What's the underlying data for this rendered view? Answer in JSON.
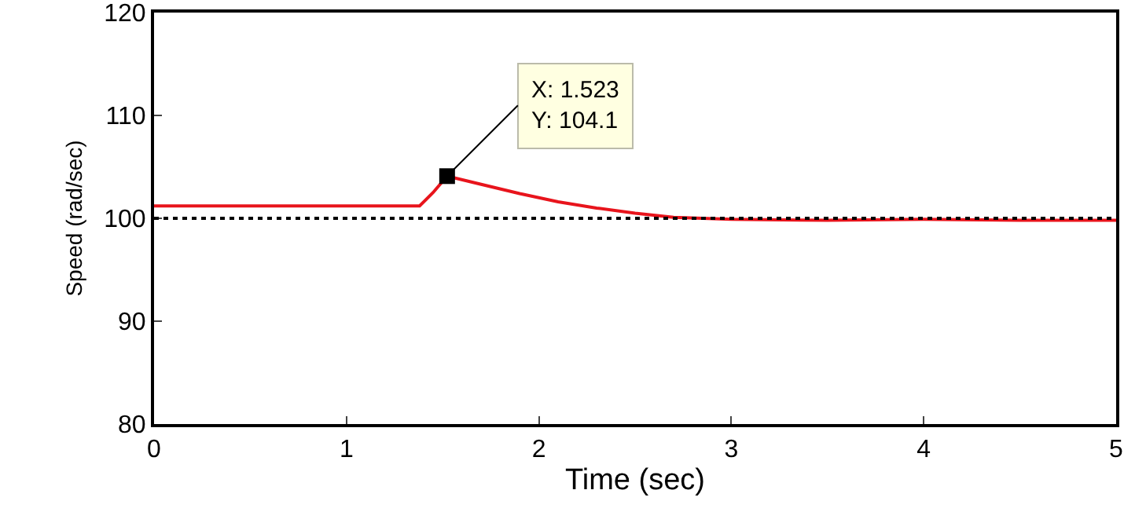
{
  "chart_data": {
    "type": "line",
    "xlabel": "Time (sec)",
    "ylabel": "Speed (rad/sec)",
    "x": [
      0,
      0.5,
      1,
      1.38,
      1.45,
      1.523,
      1.7,
      1.9,
      2.1,
      2.3,
      2.5,
      2.7,
      3,
      3.5,
      4,
      4.5,
      5
    ],
    "series": [
      {
        "color": "#e8141c",
        "values": [
          101.2,
          101.2,
          101.2,
          101.2,
          102.5,
          104.1,
          103.3,
          102.4,
          101.6,
          101,
          100.5,
          100.1,
          99.9,
          99.8,
          99.9,
          99.8,
          99.8
        ]
      }
    ],
    "xlim": [
      0,
      5
    ],
    "xticks": [
      0,
      1,
      2,
      3,
      4,
      5
    ],
    "ylim": [
      80,
      120
    ],
    "yticks": [
      80,
      90,
      100,
      110,
      120
    ],
    "marker": "none",
    "line_style": "solid",
    "ref_lines": [
      {
        "axis": "y",
        "value": 100,
        "label": null,
        "color": "#000000",
        "line_style": "dotted"
      }
    ],
    "annotations": [
      {
        "text": "X: 1.523\nY: 104.1",
        "x": 1.523,
        "y": 104.1
      }
    ]
  }
}
